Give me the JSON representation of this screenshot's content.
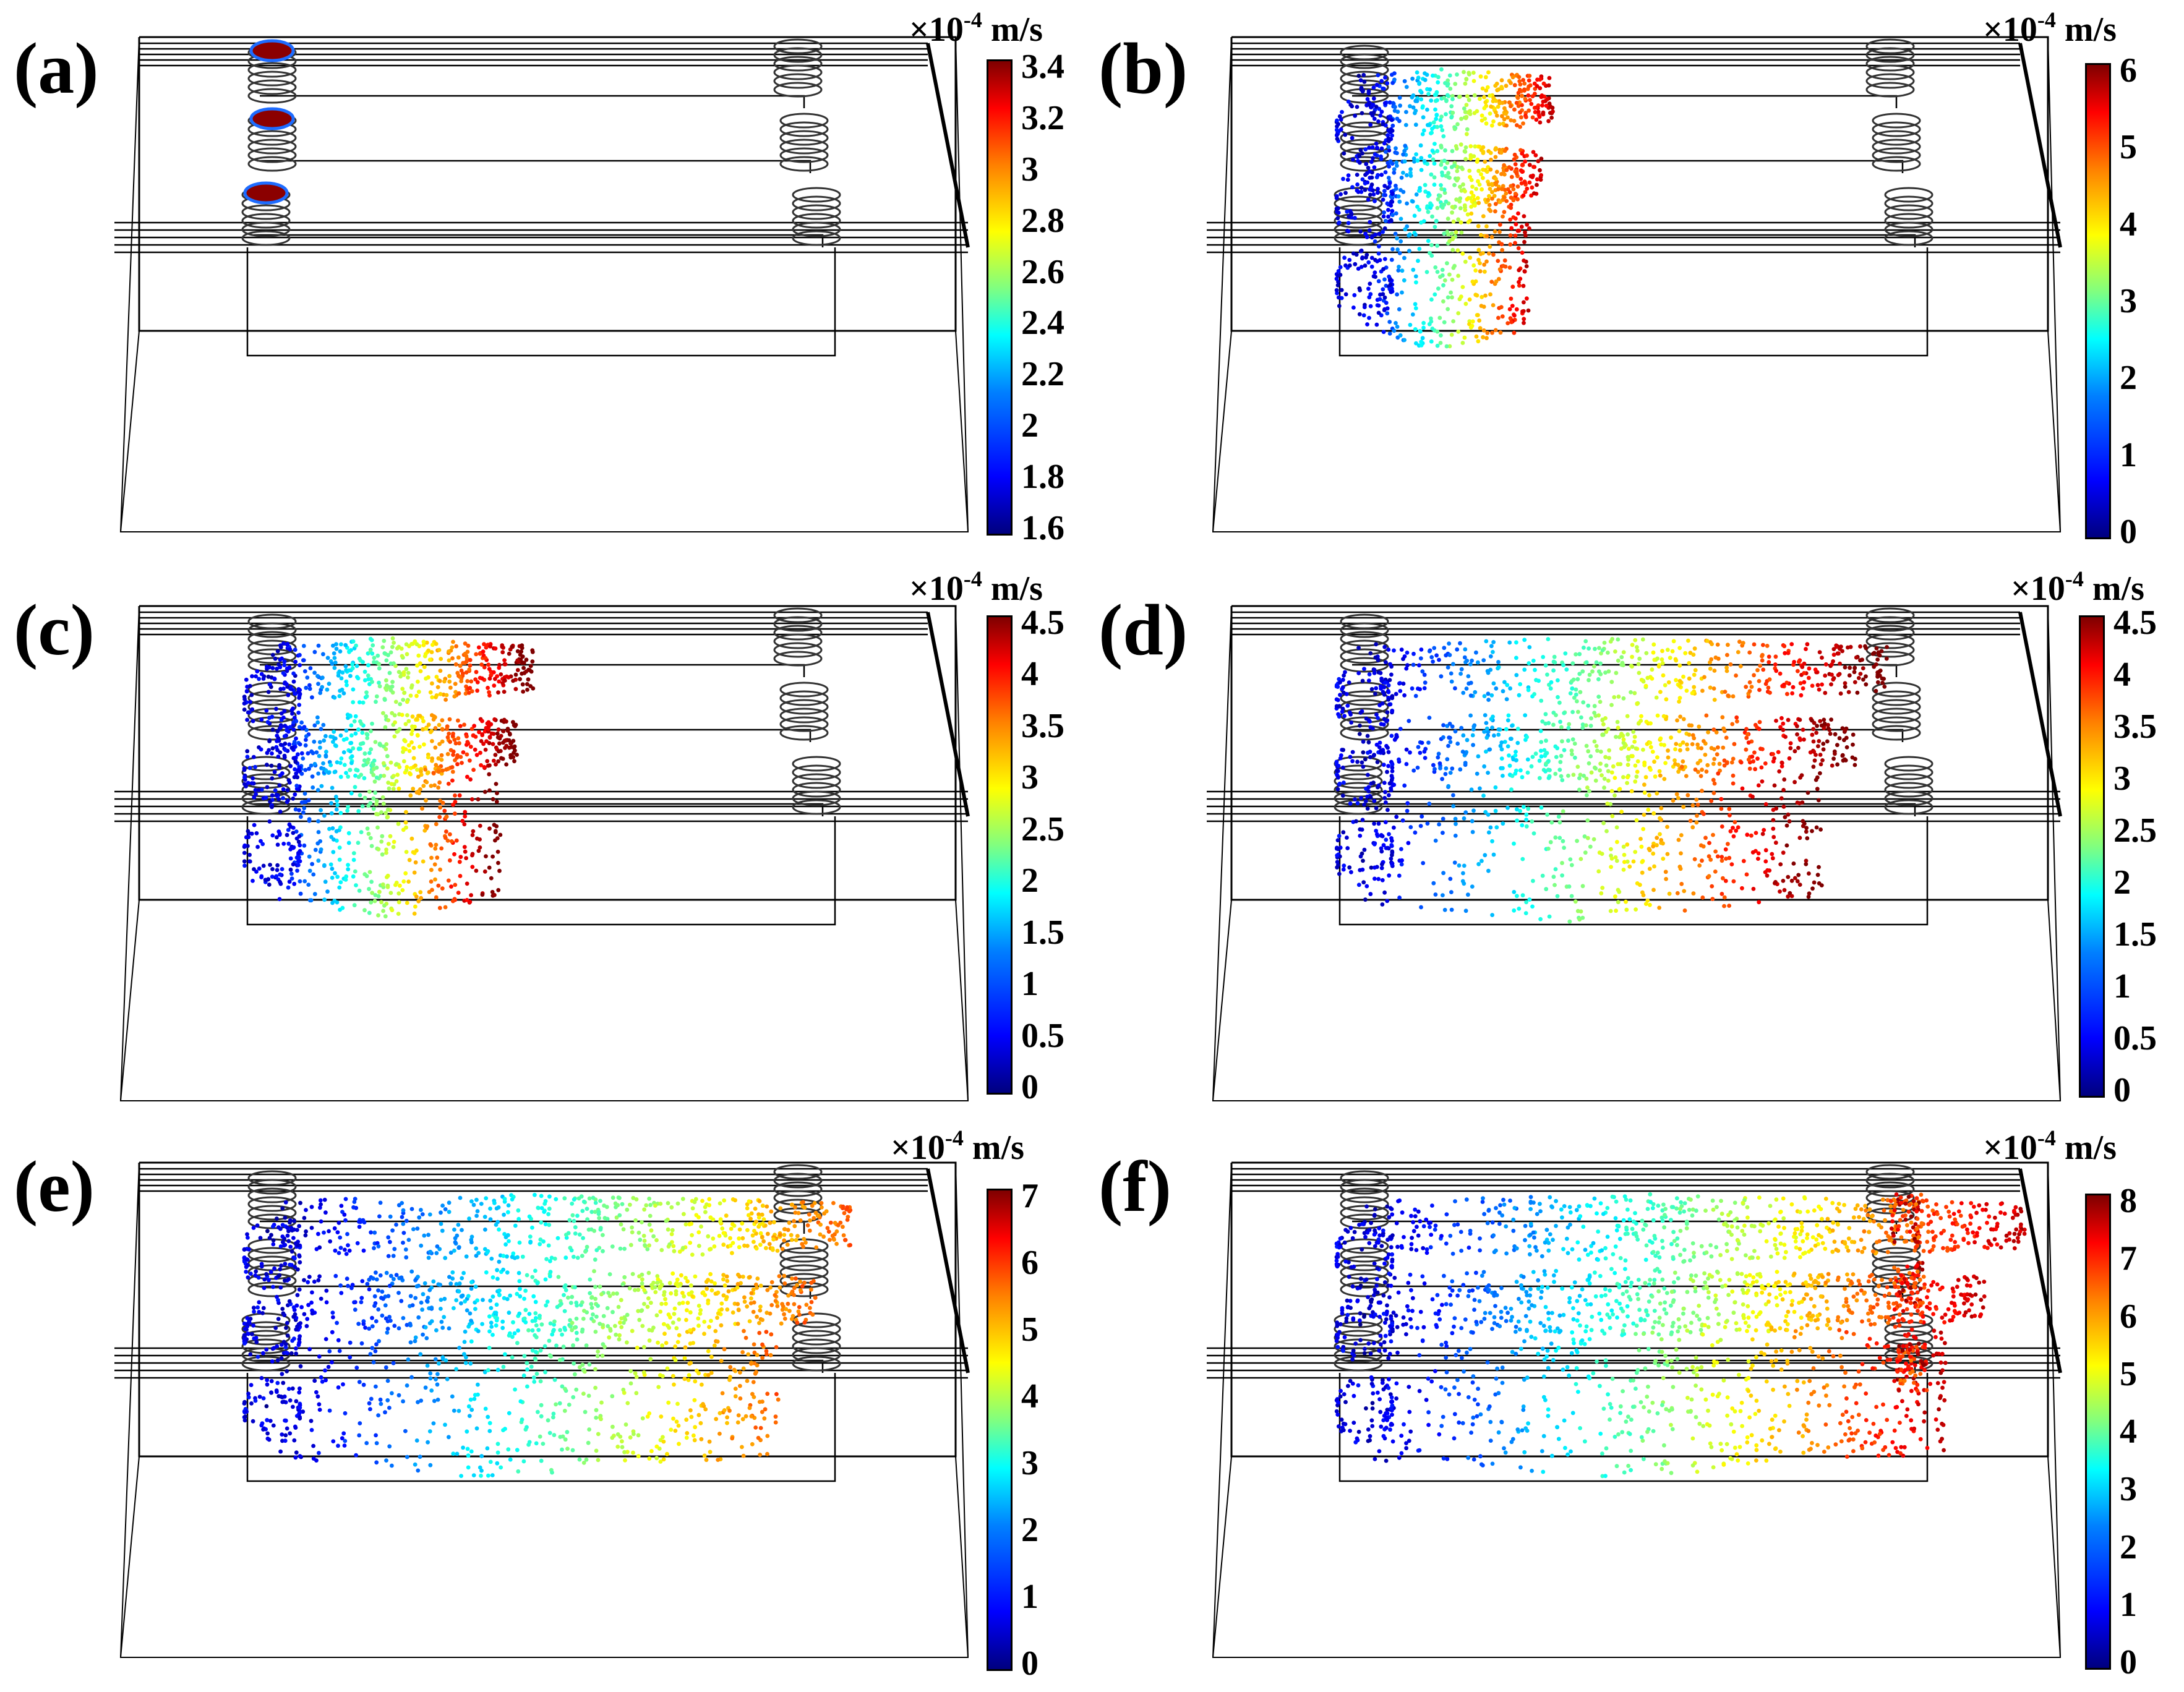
{
  "panels": [
    {
      "label": "(a)",
      "unit": "×10",
      "exp": "-4",
      "unit_suffix": " m/s",
      "ticks": [
        "3.4",
        "3.2",
        "3",
        "2.8",
        "2.6",
        "2.4",
        "2.2",
        "2",
        "1.8",
        "1.6"
      ],
      "state": 0
    },
    {
      "label": "(b)",
      "unit": "×10",
      "exp": "-4",
      "unit_suffix": " m/s",
      "ticks": [
        "6",
        "5",
        "4",
        "3",
        "2",
        "1",
        "0"
      ],
      "state": 1
    },
    {
      "label": "(c)",
      "unit": "×10",
      "exp": "-4",
      "unit_suffix": " m/s",
      "ticks": [
        "4.5",
        "4",
        "3.5",
        "3",
        "2.5",
        "2",
        "1.5",
        "1",
        "0.5",
        "0"
      ],
      "state": 2
    },
    {
      "label": "(d)",
      "unit": "×10",
      "exp": "-4",
      "unit_suffix": " m/s",
      "ticks": [
        "4.5",
        "4",
        "3.5",
        "3",
        "2.5",
        "2",
        "1.5",
        "1",
        "0.5",
        "0"
      ],
      "state": 3
    },
    {
      "label": "(e)",
      "unit": "×10",
      "exp": "-4",
      "unit_suffix": " m/s",
      "ticks": [
        "7",
        "6",
        "5",
        "4",
        "3",
        "2",
        "1",
        "0"
      ],
      "state": 4
    },
    {
      "label": "(f)",
      "unit": "×10",
      "exp": "-4",
      "unit_suffix": " m/s",
      "ticks": [
        "8",
        "7",
        "6",
        "5",
        "4",
        "3",
        "2",
        "1",
        "0"
      ],
      "state": 5
    }
  ],
  "colormap": [
    "#00007f",
    "#0000ff",
    "#0080ff",
    "#00ffff",
    "#80ff80",
    "#ffff00",
    "#ff8000",
    "#ff0000",
    "#7f0000"
  ]
}
